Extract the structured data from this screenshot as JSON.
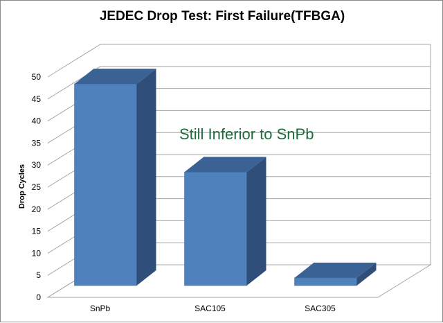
{
  "chart_data": {
    "type": "bar",
    "title": "JEDEC Drop Test: First Failure(TFBGA)",
    "ylabel": "Drop Cycles",
    "xlabel": "",
    "categories": [
      "SnPb",
      "SAC105",
      "SAC305"
    ],
    "values": [
      47,
      27,
      3
    ],
    "ylim": [
      0,
      50
    ],
    "yticks": [
      0,
      5,
      10,
      15,
      20,
      25,
      30,
      35,
      40,
      45,
      50
    ],
    "grid": true,
    "legend": "none",
    "annotation": "Still Inferior to SnPb",
    "colors": {
      "bar_front": "#4f81bd",
      "bar_side": "#2f4f7a",
      "bar_top": "#3b6294",
      "annotation": "#1e6b3c",
      "gridline": "#a6a6a6"
    }
  }
}
